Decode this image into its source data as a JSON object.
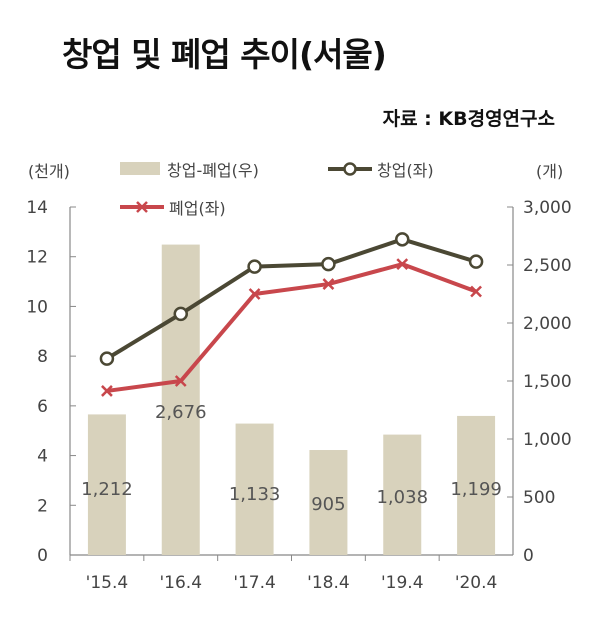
{
  "title": "창업 및 폐업 추이(서울)",
  "source": "자료 : KB경영연구소",
  "colors": {
    "bar": "#d8d2bc",
    "startup": "#4b4834",
    "closure": "#c8474c",
    "axis": "#888888"
  },
  "chart_data": {
    "type": "bar+line",
    "categories": [
      "'15.4",
      "'16.4",
      "'17.4",
      "'18.4",
      "'19.4",
      "'20.4"
    ],
    "left_axis": {
      "unit": "(천개)",
      "ylim": [
        0,
        14
      ],
      "ticks": [
        "0",
        "2",
        "4",
        "6",
        "8",
        "10",
        "12",
        "14"
      ]
    },
    "right_axis": {
      "unit": "(개)",
      "ylim": [
        0,
        3000
      ],
      "ticks": [
        "0",
        "500",
        "1,000",
        "1,500",
        "2,000",
        "2,500",
        "3,000"
      ]
    },
    "series": [
      {
        "name": "창업-폐업(우)",
        "kind": "bar",
        "axis": "right",
        "values": [
          1212,
          2676,
          1133,
          905,
          1038,
          1199
        ],
        "labels": [
          "1,212",
          "2,676",
          "1,133",
          "905",
          "1,038",
          "1,199"
        ]
      },
      {
        "name": "창업(좌)",
        "kind": "line",
        "axis": "left",
        "marker": "circle",
        "values": [
          7.9,
          9.7,
          11.6,
          11.7,
          12.7,
          11.8
        ]
      },
      {
        "name": "폐업(좌)",
        "kind": "line",
        "axis": "left",
        "marker": "x",
        "values": [
          6.6,
          7.0,
          10.5,
          10.9,
          11.7,
          10.6
        ]
      }
    ],
    "legend": {
      "position": "top"
    },
    "grid": false
  }
}
